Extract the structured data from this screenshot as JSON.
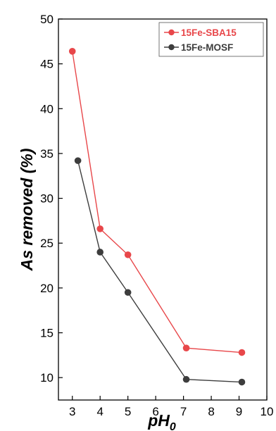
{
  "chart_data": {
    "type": "line",
    "title": "",
    "xlabel": "pH",
    "xlabel_subscript": "0",
    "ylabel": "As removed (%)",
    "xlim": [
      2.5,
      10
    ],
    "ylim": [
      7.5,
      50
    ],
    "x_ticks": [
      3,
      4,
      5,
      6,
      7,
      8,
      9,
      10
    ],
    "y_ticks": [
      10,
      15,
      20,
      25,
      30,
      35,
      40,
      45,
      50
    ],
    "grid": false,
    "legend_position": "top-right",
    "series": [
      {
        "name": "15Fe-SBA15",
        "color": "#e8474a",
        "points": [
          {
            "x": 3.0,
            "y": 46.4
          },
          {
            "x": 4.0,
            "y": 26.6
          },
          {
            "x": 5.0,
            "y": 23.7
          },
          {
            "x": 7.1,
            "y": 13.3
          },
          {
            "x": 9.1,
            "y": 12.8
          }
        ]
      },
      {
        "name": "15Fe-MOSF",
        "color": "#3d3d3d",
        "points": [
          {
            "x": 3.2,
            "y": 34.2
          },
          {
            "x": 4.0,
            "y": 24.0
          },
          {
            "x": 5.0,
            "y": 19.5
          },
          {
            "x": 7.1,
            "y": 9.8
          },
          {
            "x": 9.1,
            "y": 9.5
          }
        ]
      }
    ]
  }
}
